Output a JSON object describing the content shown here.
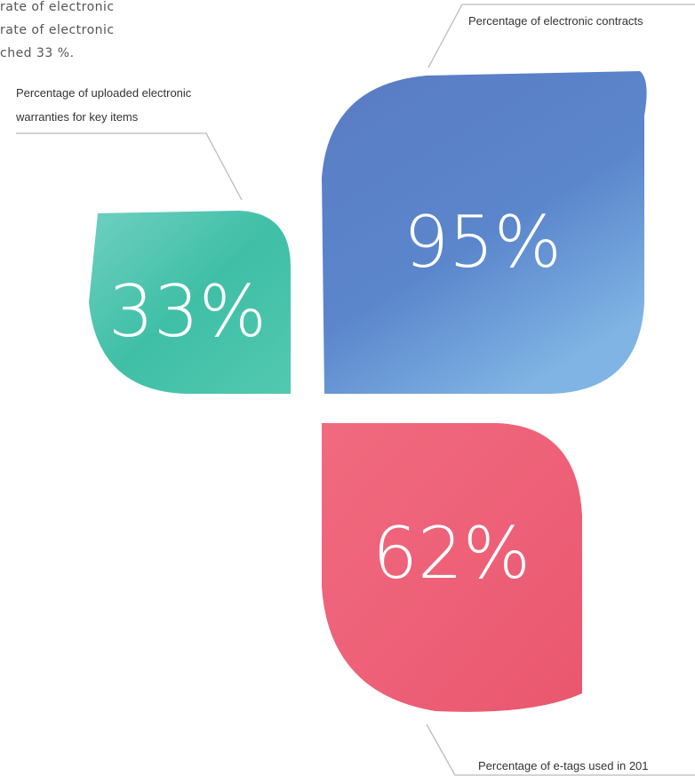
{
  "intro": {
    "lines": [
      "rate of electronic",
      "rate of electronic",
      "ched 33 %."
    ]
  },
  "items": [
    {
      "label": [
        "Percentage of uploaded electronic",
        "warranties for key items"
      ],
      "value": "33%"
    },
    {
      "label": [
        "Percentage of electronic contracts"
      ],
      "value": "95%"
    },
    {
      "label": [
        "Percentage of e-tags used in 201"
      ],
      "value": "62%"
    }
  ]
}
